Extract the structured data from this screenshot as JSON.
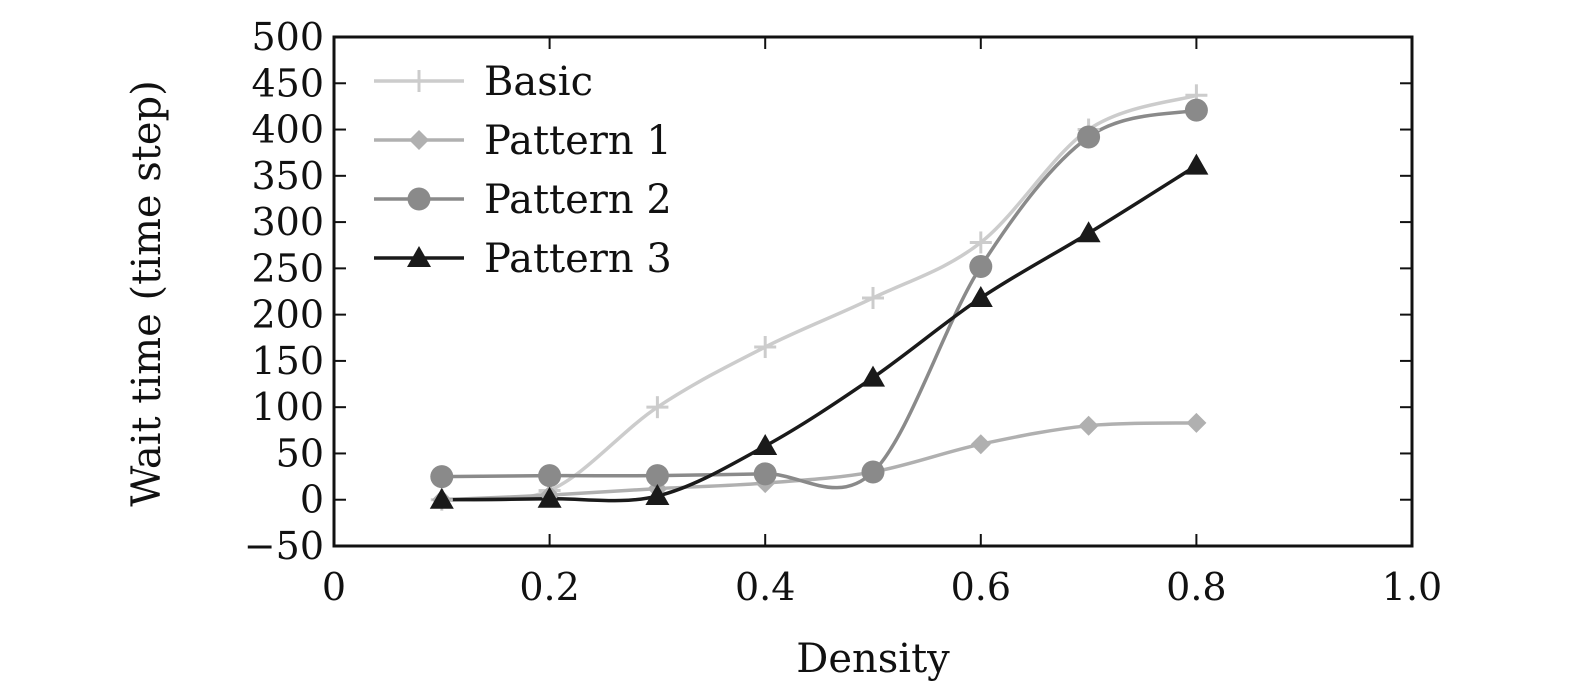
{
  "chart_data": {
    "type": "line",
    "title": "",
    "xlabel": "Density",
    "ylabel": "Wait time (time step)",
    "xlim": [
      0,
      1.0
    ],
    "ylim": [
      -50,
      500
    ],
    "x_ticks": [
      0,
      0.2,
      0.4,
      0.6,
      0.8,
      1.0
    ],
    "x_tick_labels": [
      "0",
      "0.2",
      "0.4",
      "0.6",
      "0.8",
      "1.0"
    ],
    "y_ticks": [
      -50,
      0,
      50,
      100,
      150,
      200,
      250,
      300,
      350,
      400,
      450,
      500
    ],
    "y_tick_labels": [
      "−50",
      "0",
      "50",
      "100",
      "150",
      "200",
      "250",
      "300",
      "350",
      "400",
      "450",
      "500"
    ],
    "grid": false,
    "legend_position": "top-left",
    "x": [
      0.1,
      0.2,
      0.3,
      0.4,
      0.5,
      0.6,
      0.7,
      0.8
    ],
    "series": [
      {
        "name": "Basic",
        "marker": "plus",
        "color": "#cccccc",
        "values": [
          0,
          10,
          100,
          165,
          218,
          278,
          400,
          437
        ]
      },
      {
        "name": "Pattern 1",
        "marker": "diamond",
        "color": "#b0b0b0",
        "values": [
          0,
          5,
          12,
          18,
          30,
          60,
          80,
          83
        ]
      },
      {
        "name": "Pattern 2",
        "marker": "circle",
        "color": "#8a8a8a",
        "values": [
          25,
          26,
          26,
          28,
          30,
          252,
          392,
          421
        ]
      },
      {
        "name": "Pattern 3",
        "marker": "triangle",
        "color": "#1a1a1a",
        "values": [
          0,
          1,
          4,
          58,
          132,
          218,
          288,
          361
        ]
      }
    ]
  }
}
